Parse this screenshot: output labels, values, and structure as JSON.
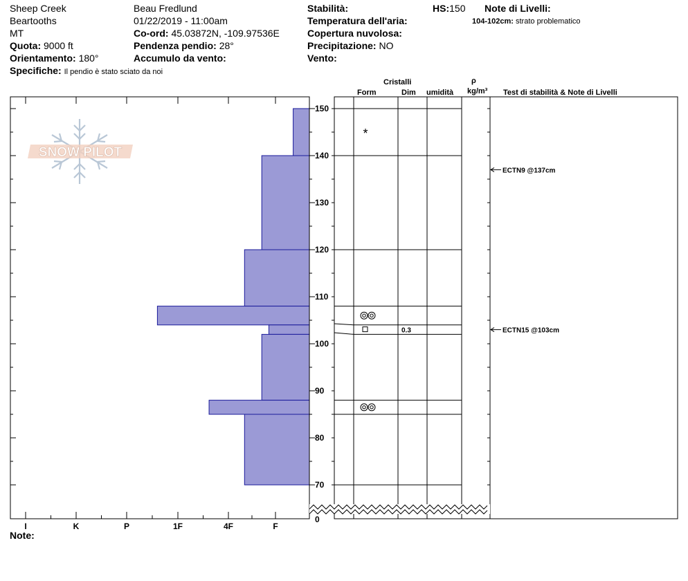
{
  "header": {
    "location": "Sheep Creek",
    "range": "Beartooths",
    "state": "MT",
    "elevation_label": "Quota:",
    "elevation_value": "9000 ft",
    "aspect_label": "Orientamento:",
    "aspect_value": "180°",
    "specifics_label": "Specifiche:",
    "specifics_value": "Il pendio è stato sciato da noi",
    "observer": "Beau  Fredlund",
    "datetime": "01/22/2019 - 11:00am",
    "coord_label": "Co-ord:",
    "coord_value": "45.03872N, -109.97536E",
    "slope_label": "Pendenza pendio:",
    "slope_value": "28°",
    "wind_loading_label": "Accumulo da vento:",
    "stability_label": "Stabilità:",
    "air_temp_label": "Temperatura dell'aria:",
    "cloud_label": "Copertura nuvolosa:",
    "precip_label": "Precipitazione:",
    "precip_value": "NO",
    "wind_label": "Vento:",
    "hs_label": "HS:",
    "hs_value": "150",
    "layer_notes_label": "Note di Livelli:",
    "layer_note_range": "104-102cm:",
    "layer_note_text": "strato problematico"
  },
  "column_headers": {
    "crystals": "Cristalli",
    "form": "Form",
    "size": "Dim",
    "moisture": "umidità",
    "rho": "ρ",
    "density_unit": "kg/m³",
    "tests": "Test di stabilità & Note di Livelli"
  },
  "logo_text": "SNOW PILOT",
  "notes_label": "Note:",
  "chart_data": {
    "type": "snow_profile",
    "hs": 150,
    "height_unit": "cm",
    "y_ticks": [
      150,
      140,
      130,
      120,
      110,
      100,
      90,
      80,
      70,
      0
    ],
    "hardness_scale": [
      "I",
      "K",
      "P",
      "1F",
      "4F",
      "F"
    ],
    "layers": [
      {
        "top": 150,
        "bottom": 140,
        "hardness_pos": 0.32
      },
      {
        "top": 140,
        "bottom": 120,
        "hardness_pos": 0.94
      },
      {
        "top": 120,
        "bottom": 108,
        "hardness_pos": 1.28
      },
      {
        "top": 108,
        "bottom": 104,
        "hardness_pos": 3.0
      },
      {
        "top": 104,
        "bottom": 102,
        "hardness_pos": 0.8
      },
      {
        "top": 102,
        "bottom": 88,
        "hardness_pos": 0.94
      },
      {
        "top": 88,
        "bottom": 85,
        "hardness_pos": 1.98
      },
      {
        "top": 85,
        "bottom": 70,
        "hardness_pos": 1.28
      }
    ],
    "grains": [
      {
        "height": 145,
        "form": "new-snow-star-icon"
      },
      {
        "height": 106,
        "form": "melt-form-cluster-icon"
      },
      {
        "height": 103,
        "form": "faceted-square-icon",
        "size": "0.3"
      },
      {
        "height": 86.5,
        "form": "melt-form-cluster-icon"
      }
    ],
    "tests": [
      {
        "height": 137,
        "label": "ECTN9 @137cm"
      },
      {
        "height": 103,
        "label": "ECTN15 @103cm"
      }
    ]
  }
}
